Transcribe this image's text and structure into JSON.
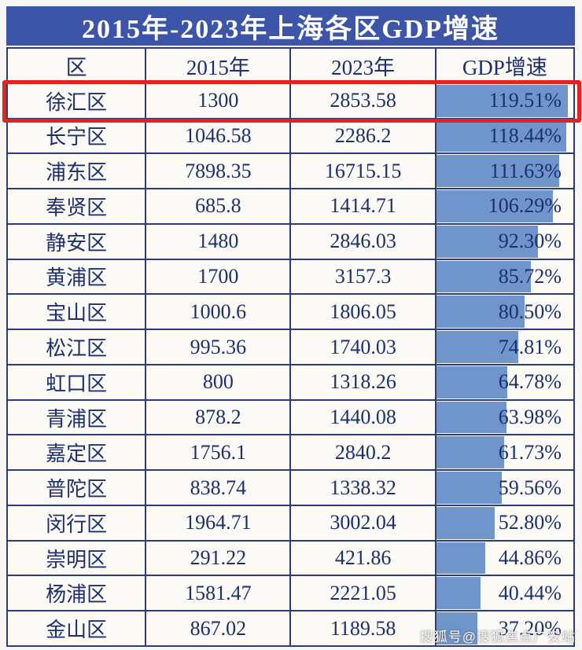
{
  "title": "2015年-2023年上海各区GDP增速",
  "columns": [
    "区",
    "2015年",
    "2023年",
    "GDP增速"
  ],
  "rows": [
    {
      "district": "徐汇区",
      "y2015": "1300",
      "y2023": "2853.58",
      "growth": "119.51%",
      "growth_value": 119.51,
      "highlighted": true
    },
    {
      "district": "长宁区",
      "y2015": "1046.58",
      "y2023": "2286.2",
      "growth": "118.44%",
      "growth_value": 118.44
    },
    {
      "district": "浦东区",
      "y2015": "7898.35",
      "y2023": "16715.15",
      "growth": "111.63%",
      "growth_value": 111.63
    },
    {
      "district": "奉贤区",
      "y2015": "685.8",
      "y2023": "1414.71",
      "growth": "106.29%",
      "growth_value": 106.29
    },
    {
      "district": "静安区",
      "y2015": "1480",
      "y2023": "2846.03",
      "growth": "92.30%",
      "growth_value": 92.3
    },
    {
      "district": "黄浦区",
      "y2015": "1700",
      "y2023": "3157.3",
      "growth": "85.72%",
      "growth_value": 85.72
    },
    {
      "district": "宝山区",
      "y2015": "1000.6",
      "y2023": "1806.05",
      "growth": "80.50%",
      "growth_value": 80.5
    },
    {
      "district": "松江区",
      "y2015": "995.36",
      "y2023": "1740.03",
      "growth": "74.81%",
      "growth_value": 74.81
    },
    {
      "district": "虹口区",
      "y2015": "800",
      "y2023": "1318.26",
      "growth": "64.78%",
      "growth_value": 64.78
    },
    {
      "district": "青浦区",
      "y2015": "878.2",
      "y2023": "1440.08",
      "growth": "63.98%",
      "growth_value": 63.98
    },
    {
      "district": "嘉定区",
      "y2015": "1756.1",
      "y2023": "2840.2",
      "growth": "61.73%",
      "growth_value": 61.73
    },
    {
      "district": "普陀区",
      "y2015": "838.74",
      "y2023": "1338.32",
      "growth": "59.56%",
      "growth_value": 59.56
    },
    {
      "district": "闵行区",
      "y2015": "1964.71",
      "y2023": "3002.04",
      "growth": "52.80%",
      "growth_value": 52.8
    },
    {
      "district": "崇明区",
      "y2015": "291.22",
      "y2023": "421.86",
      "growth": "44.86%",
      "growth_value": 44.86
    },
    {
      "district": "杨浦区",
      "y2015": "1581.47",
      "y2023": "2221.05",
      "growth": "40.44%",
      "growth_value": 40.44
    },
    {
      "district": "金山区",
      "y2015": "867.02",
      "y2023": "1189.58",
      "growth": "37.20%",
      "growth_value": 37.2
    }
  ],
  "watermark": "搜狐号@搜狐焦点广安站",
  "colors": {
    "banner_blue": "#3c55a8",
    "text_navy": "#1c2f6e",
    "bar_blue": "#6f95ca",
    "highlight_red": "#e5231d",
    "border_navy": "#2b3c7d"
  },
  "chart_data": {
    "type": "table",
    "title": "2015年-2023年上海各区GDP增速",
    "columns": [
      "区",
      "2015年",
      "2023年",
      "GDP增速"
    ],
    "categories": [
      "徐汇区",
      "长宁区",
      "浦东区",
      "奉贤区",
      "静安区",
      "黄浦区",
      "宝山区",
      "松江区",
      "虹口区",
      "青浦区",
      "嘉定区",
      "普陀区",
      "闵行区",
      "崇明区",
      "杨浦区",
      "金山区"
    ],
    "series": [
      {
        "name": "2015年",
        "values": [
          1300,
          1046.58,
          7898.35,
          685.8,
          1480,
          1700,
          1000.6,
          995.36,
          800,
          878.2,
          1756.1,
          838.74,
          1964.71,
          291.22,
          1581.47,
          867.02
        ]
      },
      {
        "name": "2023年",
        "values": [
          2853.58,
          2286.2,
          16715.15,
          1414.71,
          2846.03,
          3157.3,
          1806.05,
          1740.03,
          1318.26,
          1440.08,
          2840.2,
          1338.32,
          3002.04,
          421.86,
          2221.05,
          1189.58
        ]
      },
      {
        "name": "GDP增速(%)",
        "values": [
          119.51,
          118.44,
          111.63,
          106.29,
          92.3,
          85.72,
          80.5,
          74.81,
          64.78,
          63.98,
          61.73,
          59.56,
          52.8,
          44.86,
          40.44,
          37.2
        ]
      }
    ],
    "bar_column": "GDP增速",
    "bar_max": 119.51,
    "legend_position": "none",
    "grid": "table-borders",
    "annotations": [
      "徐汇区 row highlighted with red box"
    ]
  }
}
